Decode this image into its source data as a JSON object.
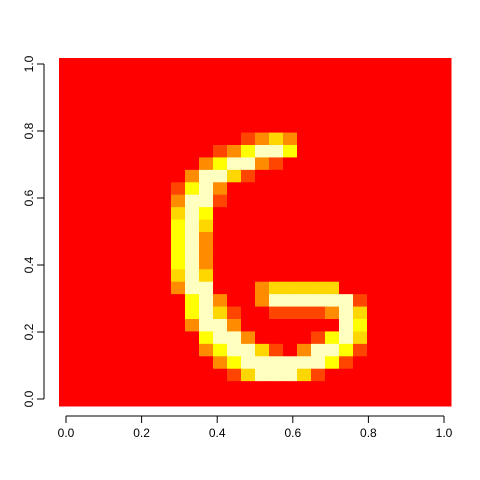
{
  "chart_data": {
    "type": "heatmap",
    "title": "",
    "xlabel": "",
    "ylabel": "",
    "xlim": [
      0,
      1
    ],
    "ylim": [
      0,
      1
    ],
    "grid": false,
    "legend": "none",
    "x_ticks": [
      "0.0",
      "0.2",
      "0.4",
      "0.6",
      "0.8",
      "1.0"
    ],
    "y_ticks": [
      "0.0",
      "0.2",
      "0.4",
      "0.6",
      "0.8",
      "1.0"
    ],
    "colormap": "heat",
    "palette": [
      "#ff0000",
      "#ff4500",
      "#ff8c00",
      "#ffd700",
      "#ffff00",
      "#ffffc0"
    ],
    "grid_size": 28,
    "rows_top_to_bottom": [
      "0000000000000000000000000000",
      "0000000000000000000000000000",
      "0000000000000000000000000000",
      "0000000000000000000000000000",
      "0000000000000000000000000000",
      "0000000000000000000000000000",
      "0000000000000000000000000000",
      "0000000000000000000000000000",
      "0000000000000000000000000000",
      "0000000000000000000000000000",
      "0000000000000000000000000000",
      "0000000000000000000000000000",
      "0000000000000000000000000000",
      "0000000000000000000000000000",
      "0000000000000000000000000000",
      "0000000000000000000000000000",
      "0000000000000000000000000000",
      "0000000000000000000000000000",
      "0000000000000000000000000000",
      "0000000000000000000000000000",
      "0000000000000000000000000000",
      "0000000000000000000000000000",
      "0000000000000000000000000000",
      "0000000000000000000000000000",
      "0000000000000000000000000000",
      "0000000000000000000000000000",
      "0000000000000000000000000000",
      "0000000000000000000000000000"
    ],
    "cells": [
      {
        "r": 6,
        "c": 13,
        "v": 1
      },
      {
        "r": 6,
        "c": 14,
        "v": 2
      },
      {
        "r": 6,
        "c": 15,
        "v": 3
      },
      {
        "r": 6,
        "c": 16,
        "v": 2
      },
      {
        "r": 7,
        "c": 11,
        "v": 1
      },
      {
        "r": 7,
        "c": 12,
        "v": 2
      },
      {
        "r": 7,
        "c": 13,
        "v": 4
      },
      {
        "r": 7,
        "c": 14,
        "v": 5
      },
      {
        "r": 7,
        "c": 15,
        "v": 5
      },
      {
        "r": 7,
        "c": 16,
        "v": 4
      },
      {
        "r": 8,
        "c": 10,
        "v": 2
      },
      {
        "r": 8,
        "c": 11,
        "v": 4
      },
      {
        "r": 8,
        "c": 12,
        "v": 5
      },
      {
        "r": 8,
        "c": 13,
        "v": 5
      },
      {
        "r": 8,
        "c": 14,
        "v": 2
      },
      {
        "r": 8,
        "c": 15,
        "v": 1
      },
      {
        "r": 9,
        "c": 9,
        "v": 2
      },
      {
        "r": 9,
        "c": 10,
        "v": 5
      },
      {
        "r": 9,
        "c": 11,
        "v": 5
      },
      {
        "r": 9,
        "c": 12,
        "v": 3
      },
      {
        "r": 9,
        "c": 13,
        "v": 1
      },
      {
        "r": 10,
        "c": 8,
        "v": 1
      },
      {
        "r": 10,
        "c": 9,
        "v": 4
      },
      {
        "r": 10,
        "c": 10,
        "v": 5
      },
      {
        "r": 10,
        "c": 11,
        "v": 2
      },
      {
        "r": 11,
        "c": 8,
        "v": 2
      },
      {
        "r": 11,
        "c": 9,
        "v": 5
      },
      {
        "r": 11,
        "c": 10,
        "v": 5
      },
      {
        "r": 11,
        "c": 11,
        "v": 1
      },
      {
        "r": 12,
        "c": 8,
        "v": 3
      },
      {
        "r": 12,
        "c": 9,
        "v": 5
      },
      {
        "r": 12,
        "c": 10,
        "v": 4
      },
      {
        "r": 13,
        "c": 8,
        "v": 4
      },
      {
        "r": 13,
        "c": 9,
        "v": 5
      },
      {
        "r": 13,
        "c": 10,
        "v": 3
      },
      {
        "r": 14,
        "c": 8,
        "v": 4
      },
      {
        "r": 14,
        "c": 9,
        "v": 5
      },
      {
        "r": 14,
        "c": 10,
        "v": 2
      },
      {
        "r": 15,
        "c": 8,
        "v": 4
      },
      {
        "r": 15,
        "c": 9,
        "v": 5
      },
      {
        "r": 15,
        "c": 10,
        "v": 2
      },
      {
        "r": 16,
        "c": 8,
        "v": 4
      },
      {
        "r": 16,
        "c": 9,
        "v": 5
      },
      {
        "r": 16,
        "c": 10,
        "v": 2
      },
      {
        "r": 17,
        "c": 8,
        "v": 3
      },
      {
        "r": 17,
        "c": 9,
        "v": 5
      },
      {
        "r": 17,
        "c": 10,
        "v": 3
      },
      {
        "r": 18,
        "c": 8,
        "v": 2
      },
      {
        "r": 18,
        "c": 9,
        "v": 5
      },
      {
        "r": 18,
        "c": 10,
        "v": 5
      },
      {
        "r": 18,
        "c": 14,
        "v": 2
      },
      {
        "r": 18,
        "c": 15,
        "v": 3
      },
      {
        "r": 18,
        "c": 16,
        "v": 3
      },
      {
        "r": 18,
        "c": 17,
        "v": 3
      },
      {
        "r": 18,
        "c": 18,
        "v": 3
      },
      {
        "r": 18,
        "c": 19,
        "v": 3
      },
      {
        "r": 19,
        "c": 9,
        "v": 4
      },
      {
        "r": 19,
        "c": 10,
        "v": 5
      },
      {
        "r": 19,
        "c": 11,
        "v": 2
      },
      {
        "r": 19,
        "c": 14,
        "v": 2
      },
      {
        "r": 19,
        "c": 15,
        "v": 5
      },
      {
        "r": 19,
        "c": 16,
        "v": 5
      },
      {
        "r": 19,
        "c": 17,
        "v": 5
      },
      {
        "r": 19,
        "c": 18,
        "v": 5
      },
      {
        "r": 19,
        "c": 19,
        "v": 5
      },
      {
        "r": 19,
        "c": 20,
        "v": 5
      },
      {
        "r": 19,
        "c": 21,
        "v": 1
      },
      {
        "r": 20,
        "c": 9,
        "v": 4
      },
      {
        "r": 20,
        "c": 10,
        "v": 5
      },
      {
        "r": 20,
        "c": 11,
        "v": 3
      },
      {
        "r": 20,
        "c": 12,
        "v": 1
      },
      {
        "r": 20,
        "c": 15,
        "v": 1
      },
      {
        "r": 20,
        "c": 16,
        "v": 1
      },
      {
        "r": 20,
        "c": 17,
        "v": 1
      },
      {
        "r": 20,
        "c": 18,
        "v": 1
      },
      {
        "r": 20,
        "c": 19,
        "v": 2
      },
      {
        "r": 20,
        "c": 20,
        "v": 5
      },
      {
        "r": 20,
        "c": 21,
        "v": 3
      },
      {
        "r": 21,
        "c": 9,
        "v": 2
      },
      {
        "r": 21,
        "c": 10,
        "v": 5
      },
      {
        "r": 21,
        "c": 11,
        "v": 5
      },
      {
        "r": 21,
        "c": 12,
        "v": 2
      },
      {
        "r": 21,
        "c": 20,
        "v": 5
      },
      {
        "r": 21,
        "c": 21,
        "v": 4
      },
      {
        "r": 22,
        "c": 10,
        "v": 4
      },
      {
        "r": 22,
        "c": 11,
        "v": 5
      },
      {
        "r": 22,
        "c": 12,
        "v": 5
      },
      {
        "r": 22,
        "c": 13,
        "v": 2
      },
      {
        "r": 22,
        "c": 18,
        "v": 1
      },
      {
        "r": 22,
        "c": 19,
        "v": 4
      },
      {
        "r": 22,
        "c": 20,
        "v": 5
      },
      {
        "r": 22,
        "c": 21,
        "v": 3
      },
      {
        "r": 23,
        "c": 10,
        "v": 2
      },
      {
        "r": 23,
        "c": 11,
        "v": 4
      },
      {
        "r": 23,
        "c": 12,
        "v": 5
      },
      {
        "r": 23,
        "c": 13,
        "v": 5
      },
      {
        "r": 23,
        "c": 14,
        "v": 3
      },
      {
        "r": 23,
        "c": 15,
        "v": 1
      },
      {
        "r": 23,
        "c": 17,
        "v": 2
      },
      {
        "r": 23,
        "c": 18,
        "v": 5
      },
      {
        "r": 23,
        "c": 19,
        "v": 5
      },
      {
        "r": 23,
        "c": 20,
        "v": 4
      },
      {
        "r": 23,
        "c": 21,
        "v": 1
      },
      {
        "r": 24,
        "c": 11,
        "v": 2
      },
      {
        "r": 24,
        "c": 12,
        "v": 4
      },
      {
        "r": 24,
        "c": 13,
        "v": 5
      },
      {
        "r": 24,
        "c": 14,
        "v": 5
      },
      {
        "r": 24,
        "c": 15,
        "v": 5
      },
      {
        "r": 24,
        "c": 16,
        "v": 5
      },
      {
        "r": 24,
        "c": 17,
        "v": 5
      },
      {
        "r": 24,
        "c": 18,
        "v": 5
      },
      {
        "r": 24,
        "c": 19,
        "v": 4
      },
      {
        "r": 24,
        "c": 20,
        "v": 1
      },
      {
        "r": 25,
        "c": 12,
        "v": 1
      },
      {
        "r": 25,
        "c": 13,
        "v": 3
      },
      {
        "r": 25,
        "c": 14,
        "v": 5
      },
      {
        "r": 25,
        "c": 15,
        "v": 5
      },
      {
        "r": 25,
        "c": 16,
        "v": 5
      },
      {
        "r": 25,
        "c": 17,
        "v": 3
      },
      {
        "r": 25,
        "c": 18,
        "v": 1
      }
    ]
  }
}
